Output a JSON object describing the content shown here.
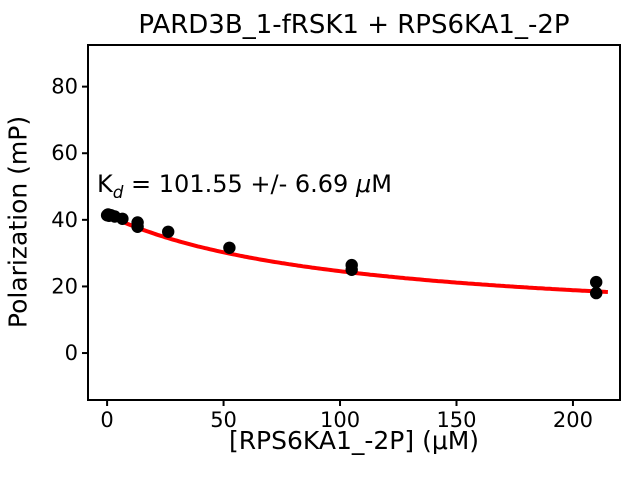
{
  "chart_data": {
    "type": "scatter",
    "title": "PARD3B_1-fRSK1 + RPS6KA1_-2P",
    "xlabel": "[RPS6KA1_-2P] (μM)",
    "ylabel": "Polarization (mP)",
    "annotation": {
      "prefix": "K",
      "subscript": "d",
      "body": " = 101.55 +/- 6.69 ",
      "mu": "μ",
      "unit": "M",
      "full_text": "Kd = 101.55 +/- 6.69 μM"
    },
    "kd_um": 101.55,
    "kd_error_um": 6.69,
    "x_ticks": [
      0,
      50,
      100,
      150,
      200
    ],
    "y_ticks": [
      0,
      20,
      40,
      60,
      80
    ],
    "xlim": [
      -8.2,
      220.2
    ],
    "ylim": [
      -14.1,
      92.5
    ],
    "grid": false,
    "legend": null,
    "points": [
      {
        "x": 0,
        "y": 41.4
      },
      {
        "x": 0.41,
        "y": 41.6
      },
      {
        "x": 0.82,
        "y": 41.2
      },
      {
        "x": 1.64,
        "y": 41.4
      },
      {
        "x": 3.28,
        "y": 41.0
      },
      {
        "x": 6.56,
        "y": 40.3
      },
      {
        "x": 13.1,
        "y": 39.2
      },
      {
        "x": 13.1,
        "y": 37.9
      },
      {
        "x": 26.25,
        "y": 36.4
      },
      {
        "x": 52.5,
        "y": 31.6
      },
      {
        "x": 105,
        "y": 26.4
      },
      {
        "x": 105,
        "y": 25.0
      },
      {
        "x": 210,
        "y": 21.3
      },
      {
        "x": 210,
        "y": 18.0
      }
    ],
    "fit": {
      "model": "P = Pinf + (P0 - Pinf) * Kd / (Kd + x)",
      "P0": 41.5,
      "Pinf": 7.4,
      "Kd": 101.55,
      "x_range": [
        0,
        215
      ]
    },
    "colors": {
      "points": "#000000",
      "fit_line": "#ff0000",
      "text": "#000000",
      "background": "#ffffff"
    }
  }
}
